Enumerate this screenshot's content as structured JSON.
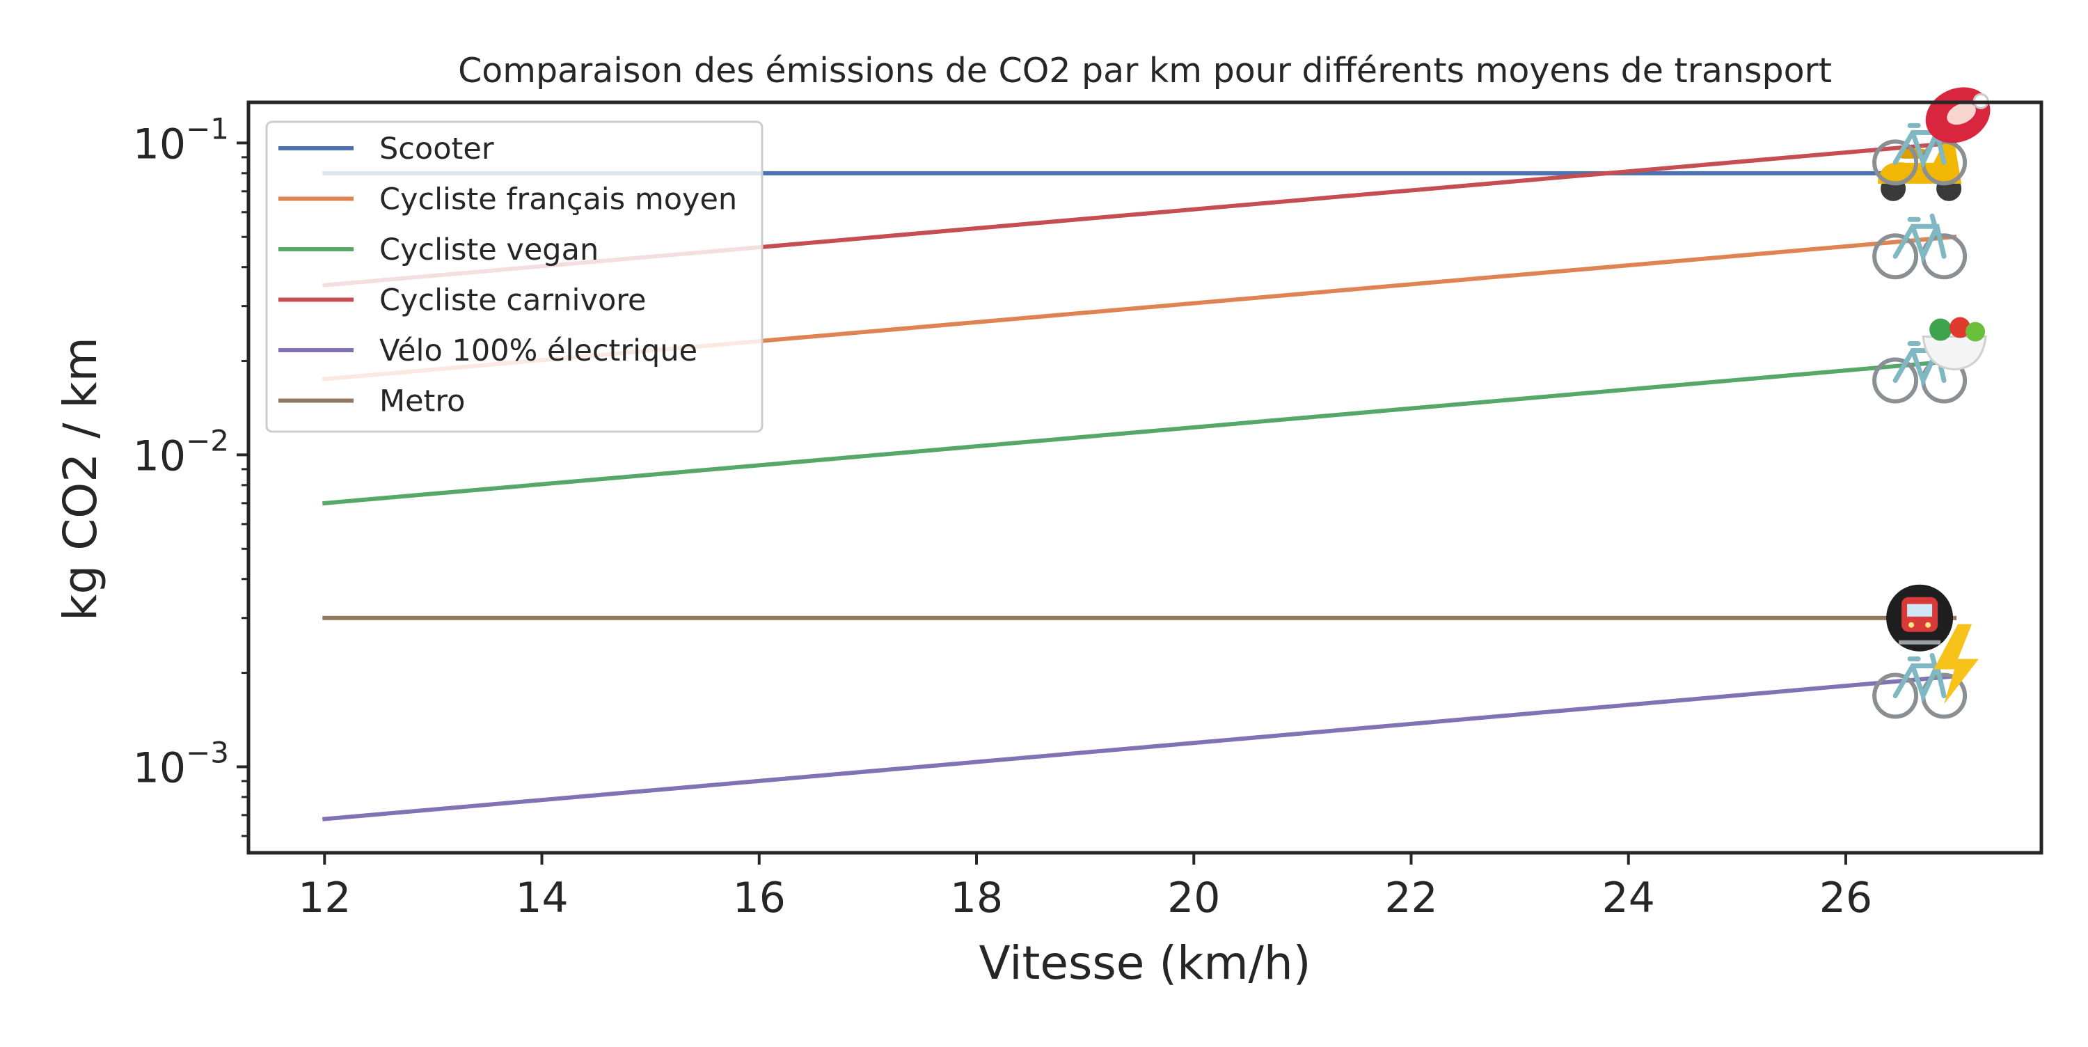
{
  "chart_data": {
    "type": "line",
    "title": "Comparaison des émissions de CO2 par km pour différents moyens de transport",
    "xlabel": "Vitesse (km/h)",
    "ylabel": "kg CO2 / km",
    "xlim": [
      11.3,
      27.8
    ],
    "ylim": [
      0.00053,
      0.135
    ],
    "yscale": "log",
    "xticks": [
      12,
      14,
      16,
      18,
      20,
      22,
      24,
      26
    ],
    "xtick_labels": [
      "12",
      "14",
      "16",
      "18",
      "20",
      "22",
      "24",
      "26"
    ],
    "yticks": [
      0.001,
      0.01,
      0.1
    ],
    "ytick_labels": [
      {
        "base": "10",
        "exp": "−3"
      },
      {
        "base": "10",
        "exp": "−2"
      },
      {
        "base": "10",
        "exp": "−1"
      }
    ],
    "grid": false,
    "legend_position": "top-left",
    "series": [
      {
        "name": "Scooter",
        "color": "#4c72b0",
        "x": [
          12,
          27
        ],
        "y": [
          0.08,
          0.08
        ],
        "icon": "scooter-icon"
      },
      {
        "name": "Cycliste français moyen",
        "color": "#dd8452",
        "x": [
          12,
          27
        ],
        "y": [
          0.0175,
          0.05
        ],
        "icon": "bicycle-icon"
      },
      {
        "name": "Cycliste vegan",
        "color": "#55a868",
        "x": [
          12,
          27
        ],
        "y": [
          0.007,
          0.02
        ],
        "icon": "bicycle-salad-icon"
      },
      {
        "name": "Cycliste carnivore",
        "color": "#c44e52",
        "x": [
          12,
          27
        ],
        "y": [
          0.035,
          0.1
        ],
        "icon": "bicycle-meat-icon"
      },
      {
        "name": "Vélo 100% électrique",
        "color": "#8172b3",
        "x": [
          12,
          27
        ],
        "y": [
          0.00068,
          0.00195
        ],
        "icon": "bicycle-lightning-icon"
      },
      {
        "name": "Metro",
        "color": "#937860",
        "x": [
          12,
          27
        ],
        "y": [
          0.003,
          0.003
        ],
        "icon": "metro-icon"
      }
    ]
  }
}
